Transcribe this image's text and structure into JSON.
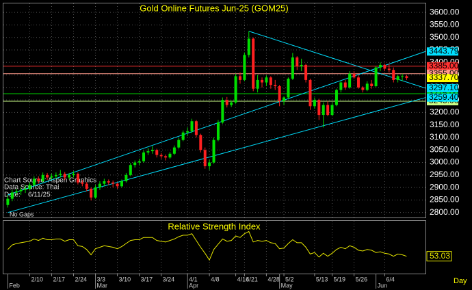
{
  "chart_data": {
    "type": "candlestick",
    "title": "Gold Online Futures Jun-25 (GOM25)",
    "source_notes": [
      "Chart Source: Aspen Graphics",
      "Data Source: Thai",
      "Date:    6/11/25"
    ],
    "gaps_note": "No Gaps",
    "up_color": "#00e000",
    "down_color": "#ff2020",
    "candles": [
      [
        2830,
        2870,
        2820,
        2855
      ],
      [
        2855,
        2890,
        2845,
        2880
      ],
      [
        2880,
        2895,
        2870,
        2885
      ],
      [
        2885,
        2900,
        2870,
        2890
      ],
      [
        2890,
        2910,
        2878,
        2895
      ],
      [
        2895,
        2920,
        2888,
        2910
      ],
      [
        2910,
        2945,
        2905,
        2935
      ],
      [
        2935,
        2945,
        2915,
        2925
      ],
      [
        2925,
        2960,
        2920,
        2950
      ],
      [
        2950,
        2958,
        2930,
        2940
      ],
      [
        2940,
        2955,
        2932,
        2945
      ],
      [
        2945,
        2960,
        2935,
        2950
      ],
      [
        2950,
        2970,
        2940,
        2955
      ],
      [
        2955,
        2962,
        2930,
        2940
      ],
      [
        2940,
        2958,
        2932,
        2950
      ],
      [
        2950,
        2965,
        2940,
        2955
      ],
      [
        2955,
        2960,
        2912,
        2920
      ],
      [
        2920,
        2930,
        2905,
        2915
      ],
      [
        2915,
        2922,
        2885,
        2895
      ],
      [
        2895,
        2900,
        2848,
        2860
      ],
      [
        2860,
        2910,
        2855,
        2900
      ],
      [
        2900,
        2925,
        2890,
        2915
      ],
      [
        2915,
        2935,
        2905,
        2925
      ],
      [
        2925,
        2932,
        2910,
        2920
      ],
      [
        2920,
        2928,
        2900,
        2915
      ],
      [
        2915,
        2920,
        2895,
        2905
      ],
      [
        2905,
        2932,
        2900,
        2925
      ],
      [
        2925,
        2958,
        2920,
        2950
      ],
      [
        2950,
        2998,
        2945,
        2990
      ],
      [
        2990,
        3008,
        2980,
        3000
      ],
      [
        3000,
        3015,
        2990,
        3005
      ],
      [
        3005,
        3048,
        3000,
        3040
      ],
      [
        3040,
        3058,
        3030,
        3045
      ],
      [
        3045,
        3065,
        3035,
        3050
      ],
      [
        3050,
        3055,
        3020,
        3030
      ],
      [
        3030,
        3038,
        3015,
        3025
      ],
      [
        3025,
        3032,
        3008,
        3020
      ],
      [
        3020,
        3042,
        3015,
        3035
      ],
      [
        3035,
        3068,
        3030,
        3060
      ],
      [
        3060,
        3098,
        3055,
        3090
      ],
      [
        3090,
        3128,
        3085,
        3120
      ],
      [
        3120,
        3140,
        3105,
        3125
      ],
      [
        3125,
        3175,
        3118,
        3165
      ],
      [
        3165,
        3170,
        3100,
        3110
      ],
      [
        3110,
        3115,
        3040,
        3050
      ],
      [
        3050,
        3060,
        2975,
        2985
      ],
      [
        2985,
        3010,
        2970,
        3000
      ],
      [
        3000,
        3100,
        2995,
        3090
      ],
      [
        3090,
        3170,
        3085,
        3160
      ],
      [
        3160,
        3260,
        3155,
        3250
      ],
      [
        3250,
        3262,
        3220,
        3230
      ],
      [
        3230,
        3248,
        3222,
        3240
      ],
      [
        3240,
        3355,
        3235,
        3345
      ],
      [
        3345,
        3360,
        3315,
        3330
      ],
      [
        3330,
        3440,
        3325,
        3430
      ],
      [
        3430,
        3525,
        3420,
        3495
      ],
      [
        3495,
        3500,
        3285,
        3295
      ],
      [
        3295,
        3350,
        3280,
        3330
      ],
      [
        3330,
        3340,
        3300,
        3320
      ],
      [
        3320,
        3348,
        3305,
        3340
      ],
      [
        3340,
        3345,
        3295,
        3310
      ],
      [
        3310,
        3330,
        3290,
        3305
      ],
      [
        3305,
        3310,
        3225,
        3245
      ],
      [
        3245,
        3265,
        3230,
        3260
      ],
      [
        3260,
        3340,
        3255,
        3335
      ],
      [
        3335,
        3438,
        3330,
        3420
      ],
      [
        3420,
        3425,
        3370,
        3385
      ],
      [
        3385,
        3415,
        3365,
        3390
      ],
      [
        3390,
        3395,
        3320,
        3330
      ],
      [
        3330,
        3335,
        3210,
        3225
      ],
      [
        3225,
        3260,
        3215,
        3250
      ],
      [
        3250,
        3255,
        3170,
        3190
      ],
      [
        3190,
        3240,
        3140,
        3230
      ],
      [
        3230,
        3245,
        3185,
        3190
      ],
      [
        3190,
        3240,
        3185,
        3230
      ],
      [
        3230,
        3295,
        3225,
        3290
      ],
      [
        3290,
        3325,
        3280,
        3320
      ],
      [
        3320,
        3330,
        3290,
        3300
      ],
      [
        3300,
        3365,
        3295,
        3355
      ],
      [
        3355,
        3365,
        3335,
        3340
      ],
      [
        3340,
        3350,
        3295,
        3300
      ],
      [
        3300,
        3305,
        3280,
        3290
      ],
      [
        3290,
        3325,
        3285,
        3315
      ],
      [
        3315,
        3330,
        3295,
        3305
      ],
      [
        3305,
        3385,
        3300,
        3380
      ],
      [
        3380,
        3400,
        3365,
        3390
      ],
      [
        3390,
        3395,
        3365,
        3375
      ],
      [
        3375,
        3395,
        3360,
        3370
      ],
      [
        3370,
        3380,
        3320,
        3330
      ],
      [
        3330,
        3350,
        3320,
        3345
      ],
      [
        3345,
        3355,
        3325,
        3345
      ],
      [
        3345,
        3350,
        3330,
        3337.7
      ]
    ],
    "xlim": [
      -1,
      95.3
    ],
    "xticks": [
      {
        "value": 5,
        "label": "2/10"
      },
      {
        "value": 10,
        "label": "2/17"
      },
      {
        "value": 15,
        "label": "2/24"
      },
      {
        "value": 20,
        "label": "3/3"
      },
      {
        "value": 25,
        "label": "3/10"
      },
      {
        "value": 30,
        "label": "3/17"
      },
      {
        "value": 35,
        "label": "3/24"
      },
      {
        "value": 41,
        "label": "4/1"
      },
      {
        "value": 46,
        "label": "4/8"
      },
      {
        "value": 52,
        "label": "4/16"
      },
      {
        "value": 54,
        "label": "4/21"
      },
      {
        "value": 59,
        "label": "4/28"
      },
      {
        "value": 63,
        "label": "5/2"
      },
      {
        "value": 70,
        "label": "5/13"
      },
      {
        "value": 74,
        "label": "5/19"
      },
      {
        "value": 79,
        "label": "5/26"
      },
      {
        "value": 86,
        "label": "6/4"
      }
    ],
    "month_ticks": [
      {
        "value": 0,
        "label": "Feb"
      },
      {
        "value": 20,
        "label": "Mar"
      },
      {
        "value": 41,
        "label": "Apr"
      },
      {
        "value": 62,
        "label": "May"
      },
      {
        "value": 84,
        "label": "Jun"
      }
    ],
    "x_unit_label": "Day",
    "ylim": [
      2780,
      3636
    ],
    "yticks": [
      {
        "value": 2800,
        "label": "2800.00"
      },
      {
        "value": 2850,
        "label": "2850.00"
      },
      {
        "value": 2900,
        "label": "2900.00"
      },
      {
        "value": 2950,
        "label": "2950.00"
      },
      {
        "value": 3000,
        "label": "3000.00"
      },
      {
        "value": 3050,
        "label": "3050.00"
      },
      {
        "value": 3100,
        "label": "3100.00"
      },
      {
        "value": 3150,
        "label": "3150.00"
      },
      {
        "value": 3200,
        "label": "3200.00"
      },
      {
        "value": 3250,
        "label": "3250.00"
      },
      {
        "value": 3300,
        "label": "3300.00"
      },
      {
        "value": 3350,
        "label": "3350.00"
      },
      {
        "value": 3400,
        "label": "3400.00"
      },
      {
        "value": 3450,
        "label": "3450.00"
      },
      {
        "value": 3500,
        "label": "3500.00"
      },
      {
        "value": 3550,
        "label": "3550.00"
      },
      {
        "value": 3600,
        "label": "3600.00"
      }
    ],
    "grid": true,
    "last_price": {
      "value": 3337.7,
      "label": "3337.70",
      "color": "#ffff00"
    },
    "levels": [
      {
        "value": 3385,
        "label": "3385.00",
        "color": "#ff3030"
      },
      {
        "value": 3355,
        "label": "3355.00",
        "color": "#ff9a8a"
      },
      {
        "value": 3275,
        "label": "3275.00",
        "color": "#00d000"
      },
      {
        "value": 3245,
        "label": "3245.00",
        "color": "#ccff88"
      }
    ],
    "trendlines": [
      {
        "from": [
          0,
          2870
        ],
        "to": [
          95.3,
          3443.79
        ],
        "color": "#00e0ff"
      },
      {
        "from": [
          55,
          3525
        ],
        "to": [
          95.3,
          3297.1
        ],
        "color": "#00e0ff",
        "value_label": "3297.10"
      },
      {
        "from": [
          0,
          2800
        ],
        "to": [
          95.3,
          3259.4
        ],
        "color": "#00e0ff",
        "value_label": "3259.40"
      }
    ],
    "indicator": {
      "title": "Relative Strength Index",
      "color": "#e8e800",
      "ylim": [
        30,
        100
      ],
      "values": [
        62,
        68,
        70,
        71,
        72,
        73,
        76,
        74,
        77,
        75,
        75,
        76,
        76,
        73,
        75,
        75,
        67,
        66,
        62,
        55,
        63,
        65,
        67,
        66,
        65,
        63,
        66,
        70,
        74,
        75,
        75,
        78,
        78,
        78,
        74,
        73,
        72,
        74,
        76,
        79,
        81,
        81,
        83,
        74,
        65,
        57,
        48,
        62,
        69,
        76,
        73,
        74,
        80,
        78,
        83,
        86,
        72,
        74,
        73,
        74,
        71,
        70,
        63,
        64,
        70,
        75,
        71,
        71,
        65,
        56,
        58,
        52,
        57,
        53,
        57,
        62,
        65,
        63,
        67,
        65,
        61,
        60,
        62,
        61,
        58,
        59,
        57,
        56,
        53,
        56,
        55,
        53.03
      ]
    }
  }
}
